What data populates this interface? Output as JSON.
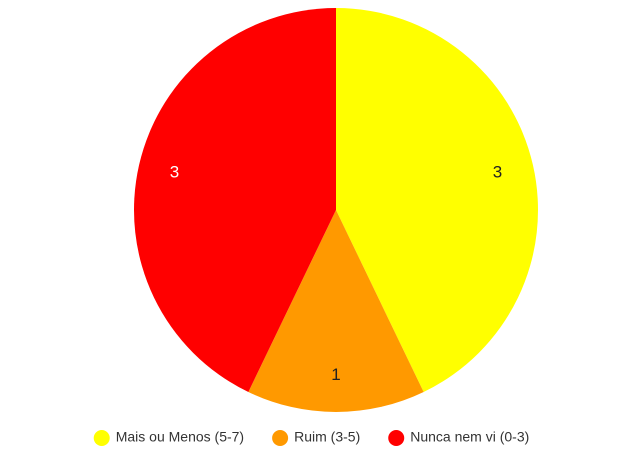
{
  "chart_data": {
    "type": "pie",
    "categories": [
      "Mais ou Menos (5-7)",
      "Ruim (3-5)",
      "Nunca nem vi (0-3)"
    ],
    "values": [
      3,
      1,
      3
    ],
    "colors": [
      "#ffff00",
      "#ff9900",
      "#ff0000"
    ],
    "legend": "bottom"
  }
}
